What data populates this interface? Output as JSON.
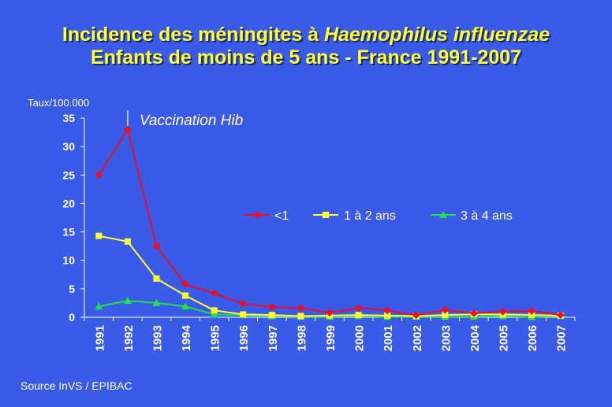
{
  "title": {
    "line1_prefix": "Incidence des méningites à ",
    "line1_italic": "Haemophilus influenzae",
    "line2": "Enfants de moins de 5 ans - France 1991-2007"
  },
  "source": "Source InVS / EPIBAC",
  "colors": {
    "background": "#3a5ae8",
    "title": "#ffff33",
    "text": "#ffffff"
  },
  "chart_data": {
    "type": "line",
    "ylabel": "Taux/100.000",
    "ylim": [
      0,
      35
    ],
    "yticks": [
      0,
      5,
      10,
      15,
      20,
      25,
      30,
      35
    ],
    "x": [
      "1991",
      "1992",
      "1993",
      "1994",
      "1995",
      "1996",
      "1997",
      "1998",
      "1999",
      "2000",
      "2001",
      "2002",
      "2003",
      "2004",
      "2005",
      "2006",
      "2007"
    ],
    "legend_position": "center-right",
    "grid": false,
    "annotation": {
      "text": "Vaccination Hib",
      "x": "1992"
    },
    "series": [
      {
        "name": "<1",
        "color": "#e8102a",
        "marker": "diamond",
        "values": [
          25,
          33,
          12.5,
          5.8,
          4.2,
          2.4,
          1.8,
          1.6,
          0.8,
          1.6,
          1.2,
          0.4,
          1.3,
          0.7,
          1.0,
          1.1,
          0.4
        ]
      },
      {
        "name": "1 à 2 ans",
        "color": "#ffff33",
        "marker": "square",
        "values": [
          14.3,
          13.3,
          6.8,
          3.8,
          1.2,
          0.5,
          0.4,
          0.2,
          0.3,
          0.4,
          0.3,
          0.2,
          0.4,
          0.5,
          0.5,
          0.4,
          0.3
        ]
      },
      {
        "name": "3 à 4 ans",
        "color": "#22e04a",
        "marker": "triangle",
        "values": [
          1.9,
          2.9,
          2.5,
          1.9,
          0.5,
          0.4,
          0.2,
          0.1,
          0.1,
          0.2,
          0.05,
          0.1,
          0.1,
          0.1,
          0.2,
          0.05,
          0.2
        ]
      }
    ]
  }
}
